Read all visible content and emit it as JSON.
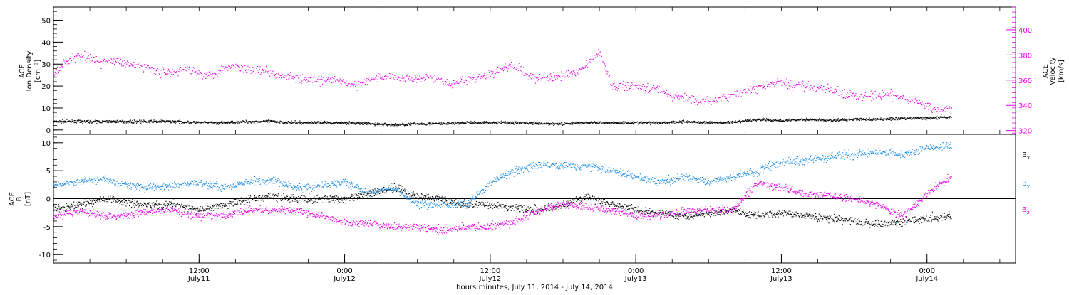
{
  "xaxis": {
    "title": "hours:minutes, July 11, 2014 - July 14, 2014",
    "ticks": [
      {
        "t": 12,
        "time": "12:00",
        "date": "July11"
      },
      {
        "t": 24,
        "time": "0:00",
        "date": "July12"
      },
      {
        "t": 36,
        "time": "12:00",
        "date": "July12"
      },
      {
        "t": 48,
        "time": "0:00",
        "date": "July13"
      },
      {
        "t": 60,
        "time": "12:00",
        "date": "July13"
      },
      {
        "t": 72,
        "time": "0:00",
        "date": "July14"
      }
    ],
    "range_hours": [
      0,
      79.3
    ]
  },
  "colors": {
    "density": "#000000",
    "velocity": "#e600e6",
    "bx": "#000000",
    "by": "#1f8fe8",
    "bz": "#e600e6",
    "axis": "#000000"
  },
  "chart_data": [
    {
      "type": "scatter",
      "panel": "plasma",
      "ylabel_left": [
        "ACE",
        "Ion Density",
        "[cm⁻³]"
      ],
      "ylabel_right": [
        "ACE",
        "Velocity",
        "[km/s]"
      ],
      "ylim_left": [
        -2,
        56
      ],
      "yticks_left": [
        0,
        10,
        20,
        30,
        40,
        50
      ],
      "ylim_right": [
        317,
        418
      ],
      "yticks_right": [
        320,
        340,
        360,
        380,
        400
      ],
      "series": [
        {
          "axis": "left",
          "x": [
            0,
            2,
            4,
            6,
            8,
            10,
            12,
            14,
            16,
            18,
            20,
            22,
            24,
            26,
            28,
            30,
            32,
            34,
            36,
            38,
            40,
            42,
            44,
            46,
            48,
            50,
            52,
            54,
            56,
            58,
            60,
            62,
            64,
            66,
            68,
            70,
            72,
            74
          ],
          "y": [
            4,
            4,
            4,
            4,
            4,
            4,
            3.5,
            3.5,
            4,
            4,
            3.5,
            3.5,
            3.5,
            3,
            2.5,
            3,
            3,
            3.5,
            3.5,
            3.5,
            3,
            3,
            3.5,
            3.5,
            3.5,
            3.5,
            4,
            3.5,
            3.5,
            5,
            4.5,
            5,
            4.5,
            5,
            5,
            5.5,
            5.5,
            6
          ]
        },
        {
          "axis": "right",
          "x": [
            0,
            1,
            2,
            3,
            4,
            5,
            6,
            7,
            8,
            9,
            10,
            11,
            12,
            13,
            14,
            15,
            16,
            17,
            18,
            19,
            20,
            21,
            22,
            23,
            24,
            25,
            26,
            27,
            28,
            29,
            30,
            31,
            32,
            33,
            34,
            35,
            36,
            37,
            38,
            39,
            40,
            41,
            42,
            43,
            44,
            45,
            46,
            47,
            48,
            49,
            50,
            51,
            52,
            53,
            54,
            55,
            56,
            57,
            58,
            59,
            60,
            61,
            62,
            63,
            64,
            65,
            66,
            67,
            68,
            69,
            70,
            71,
            72,
            73,
            74
          ],
          "y": [
            365,
            375,
            380,
            378,
            374,
            376,
            374,
            372,
            370,
            366,
            366,
            370,
            366,
            364,
            370,
            372,
            368,
            369,
            366,
            364,
            362,
            360,
            360,
            361,
            358,
            356,
            360,
            363,
            363,
            362,
            362,
            363,
            360,
            358,
            360,
            362,
            364,
            370,
            372,
            364,
            362,
            362,
            364,
            366,
            374,
            382,
            355,
            356,
            356,
            354,
            352,
            348,
            346,
            344,
            344,
            346,
            348,
            352,
            354,
            357,
            358,
            356,
            356,
            354,
            352,
            350,
            348,
            347,
            348,
            349,
            346,
            344,
            340,
            336,
            338
          ]
        }
      ]
    },
    {
      "type": "scatter",
      "panel": "magnetic",
      "ylabel": [
        "ACE",
        "B",
        "[nT]"
      ],
      "ylim": [
        -11.5,
        11.5
      ],
      "yticks": [
        -10,
        -5,
        0,
        5,
        10
      ],
      "legend": [
        "Bₓ",
        "Bᵧ",
        "B_z"
      ],
      "legend_labels": {
        "bx": "B",
        "bx_sub": "x",
        "by": "B",
        "by_sub": "y",
        "bz": "B",
        "bz_sub": "z"
      },
      "series": [
        {
          "key": "bx",
          "x": [
            0,
            2,
            4,
            6,
            8,
            10,
            12,
            14,
            16,
            18,
            20,
            22,
            24,
            26,
            28,
            30,
            32,
            34,
            36,
            38,
            40,
            42,
            44,
            46,
            48,
            50,
            52,
            54,
            56,
            58,
            60,
            62,
            64,
            66,
            68,
            70,
            72,
            74
          ],
          "y": [
            -2,
            -1,
            0,
            -0.5,
            -1,
            -1,
            -2,
            -1,
            0,
            0.5,
            0,
            0,
            0,
            1,
            2,
            0.5,
            0,
            -1,
            -1,
            -1.5,
            -2,
            -1,
            0.5,
            -1,
            -2,
            -2.5,
            -3,
            -2.5,
            -2,
            -3,
            -2.5,
            -3,
            -3.5,
            -4,
            -4.5,
            -4,
            -3.5,
            -3
          ]
        },
        {
          "key": "by",
          "x": [
            0,
            2,
            4,
            6,
            8,
            10,
            12,
            14,
            16,
            18,
            20,
            22,
            24,
            26,
            28,
            30,
            32,
            34,
            36,
            38,
            40,
            42,
            44,
            46,
            48,
            50,
            52,
            54,
            56,
            58,
            60,
            62,
            64,
            66,
            68,
            70,
            72,
            74
          ],
          "y": [
            2.5,
            3,
            3.5,
            2.5,
            2,
            2.5,
            3,
            2,
            3,
            3.5,
            2,
            2.5,
            3,
            1,
            2,
            -1,
            -1,
            -1,
            3,
            5,
            6,
            6,
            6,
            5,
            4,
            3,
            4,
            3,
            4,
            5,
            6.5,
            7,
            7.5,
            8,
            8.5,
            8,
            9,
            9.5
          ]
        },
        {
          "key": "bz",
          "x": [
            0,
            2,
            4,
            6,
            8,
            10,
            12,
            14,
            16,
            18,
            20,
            22,
            24,
            26,
            28,
            30,
            32,
            34,
            36,
            38,
            40,
            42,
            44,
            46,
            48,
            50,
            52,
            54,
            56,
            58,
            60,
            62,
            64,
            66,
            68,
            70,
            72,
            74
          ],
          "y": [
            -3,
            -2,
            -3,
            -3,
            -2,
            -2,
            -3,
            -3,
            -2,
            -2,
            -2,
            -3,
            -4,
            -4.5,
            -5,
            -5,
            -5.5,
            -5,
            -5,
            -4,
            -2,
            -1,
            -1.5,
            -2,
            -3,
            -3,
            -2,
            -2,
            -2,
            3,
            2,
            1,
            0.5,
            0,
            -1,
            -3,
            1,
            4
          ]
        }
      ]
    }
  ]
}
